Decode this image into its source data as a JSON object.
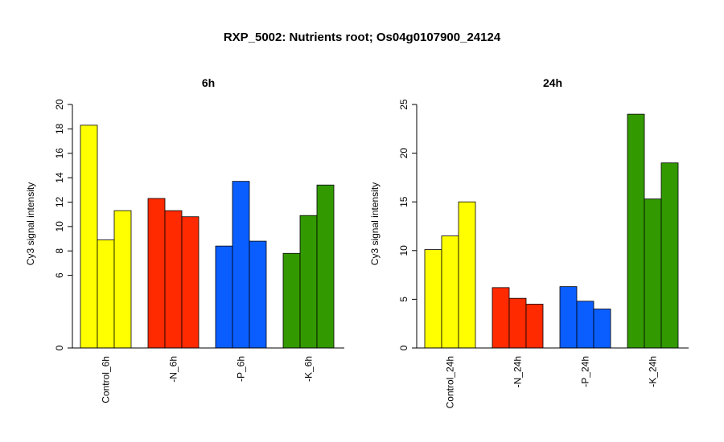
{
  "title": "RXP_5002: Nutrients root; Os04g0107900_24124",
  "colors": {
    "yellow": "#ffff00",
    "red": "#ff2a00",
    "blue": "#0a5eff",
    "green": "#339900",
    "outline": "#000000"
  },
  "chart_data": [
    {
      "type": "bar",
      "title": "6h",
      "ylabel": "Cy3 signal intensity",
      "yticks": [
        0,
        6,
        8,
        10,
        12,
        14,
        16,
        18,
        20
      ],
      "ylim": [
        0,
        20
      ],
      "axis_break": "tick labels 0 and 6 with no ticks between (compressed low range)",
      "categories": [
        "Control_6h",
        "-N_6h",
        "-P_6h",
        "-K_6h"
      ],
      "group_colors": [
        "yellow",
        "red",
        "blue",
        "green"
      ],
      "values": [
        [
          18.3,
          8.9,
          11.3
        ],
        [
          12.3,
          11.3,
          10.8
        ],
        [
          8.4,
          13.7,
          8.8
        ],
        [
          7.8,
          10.9,
          13.4
        ]
      ]
    },
    {
      "type": "bar",
      "title": "24h",
      "ylabel": "Cy3 signal intensity",
      "yticks": [
        0,
        5,
        10,
        15,
        20,
        25
      ],
      "ylim": [
        0,
        25
      ],
      "categories": [
        "Control_24h",
        "-N_24h",
        "-P_24h",
        "-K_24h"
      ],
      "group_colors": [
        "yellow",
        "red",
        "blue",
        "green"
      ],
      "values": [
        [
          10.1,
          11.5,
          15.0
        ],
        [
          6.2,
          5.1,
          4.5
        ],
        [
          6.3,
          4.8,
          4.0
        ],
        [
          24.0,
          15.3,
          19.0
        ]
      ]
    }
  ]
}
